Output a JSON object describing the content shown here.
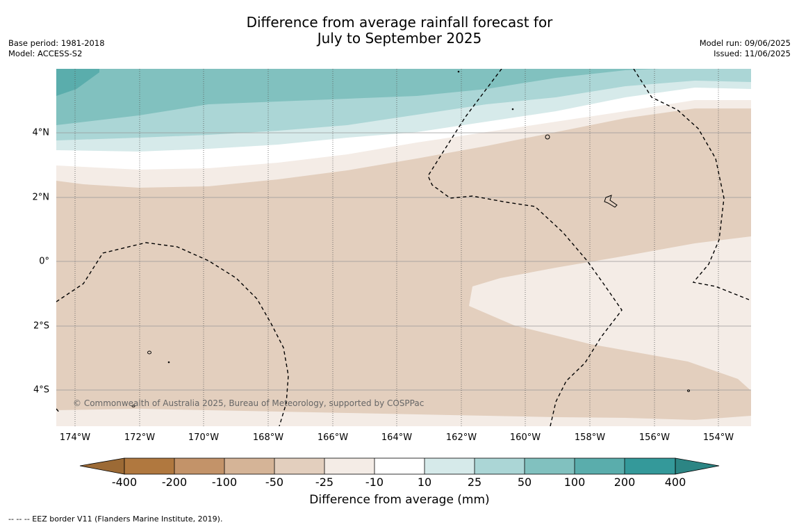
{
  "title": {
    "line1": "Difference from average rainfall forecast for",
    "line2": "July to September 2025"
  },
  "meta_left": {
    "base_period": "Base period: 1981-2018",
    "model": "Model: ACCESS-S2"
  },
  "meta_right": {
    "model_run": "Model run: 09/06/2025",
    "issued": "Issued: 11/06/2025"
  },
  "map": {
    "lat_labels": [
      "4°N",
      "2°N",
      "0°",
      "2°S",
      "4°S"
    ],
    "lon_labels": [
      "174°W",
      "172°W",
      "170°W",
      "168°W",
      "166°W",
      "164°W",
      "162°W",
      "160°W",
      "158°W",
      "156°W",
      "154°W"
    ],
    "copyright": "© Commonwealth of Australia 2025, Bureau of Meteorology, supported by COSPPac"
  },
  "colorbar": {
    "title": "Difference from average (mm)",
    "tick_labels": [
      "-400",
      "-200",
      "-100",
      "-50",
      "-25",
      "-10",
      "10",
      "25",
      "50",
      "100",
      "200",
      "400"
    ],
    "colors": [
      "#9c6a35",
      "#b0783f",
      "#c39369",
      "#d5b497",
      "#e3cfbe",
      "#f4ece6",
      "#ffffff",
      "#d6eaea",
      "#abd6d6",
      "#81c1bf",
      "#5aadac",
      "#34999a",
      "#2c8584"
    ]
  },
  "footnote": "--  --  -- EEZ border V11 (Flanders Marine Institute, 2019)."
}
